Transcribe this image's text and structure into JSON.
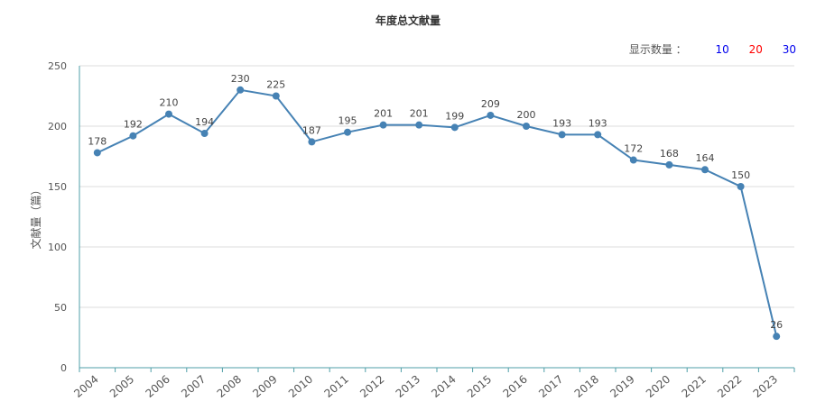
{
  "title": "年度总文献量",
  "count_selector": {
    "label": "显示数量 ：",
    "options": [
      {
        "label": "10",
        "color": "#0000ee"
      },
      {
        "label": "20",
        "color": "#ff0000"
      },
      {
        "label": "30",
        "color": "#0000ee"
      }
    ]
  },
  "chart_data": {
    "type": "line",
    "title": "年度总文献量",
    "xlabel": "",
    "ylabel": "文献量（篇）",
    "ylim": [
      0,
      250
    ],
    "yticks": [
      0,
      50,
      100,
      150,
      200,
      250
    ],
    "grid": true,
    "categories": [
      "2004",
      "2005",
      "2006",
      "2007",
      "2008",
      "2009",
      "2010",
      "2011",
      "2012",
      "2013",
      "2014",
      "2015",
      "2016",
      "2017",
      "2018",
      "2019",
      "2020",
      "2021",
      "2022",
      "2023"
    ],
    "series": [
      {
        "values": [
          178,
          192,
          210,
          194,
          230,
          225,
          187,
          195,
          201,
          201,
          199,
          209,
          200,
          193,
          193,
          172,
          168,
          164,
          150,
          26
        ],
        "color": "#4682b4"
      }
    ]
  }
}
